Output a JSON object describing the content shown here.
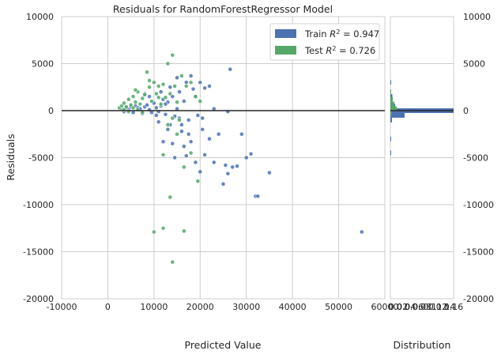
{
  "chart_data": {
    "type": "scatter",
    "title": "Residuals for RandomForestRegressor Model",
    "xlabel": "Predicted Value",
    "ylabel": "Residuals",
    "xlim": [
      -10000,
      60000
    ],
    "ylim": [
      -20000,
      10000
    ],
    "xticks": [
      "-10000",
      "0",
      "10000",
      "20000",
      "30000",
      "40000",
      "50000",
      "60000"
    ],
    "yticks": [
      "10000",
      "5000",
      "0",
      "-5000",
      "-10000",
      "-15000",
      "-20000"
    ],
    "grid": true,
    "zero_line": 0,
    "legend": {
      "placement": "top-right",
      "entries": [
        {
          "label": "Train R² = 0.947",
          "color": "#4c72b0"
        },
        {
          "label": "Test R² = 0.726",
          "color": "#55a868"
        }
      ]
    },
    "series": [
      {
        "name": "Train R² = 0.947",
        "color": "#4c72b0",
        "points": [
          [
            3000,
            200
          ],
          [
            3500,
            -100
          ],
          [
            4000,
            300
          ],
          [
            4500,
            100
          ],
          [
            5000,
            400
          ],
          [
            5500,
            -200
          ],
          [
            6000,
            500
          ],
          [
            6500,
            300
          ],
          [
            7000,
            200
          ],
          [
            7500,
            -300
          ],
          [
            8000,
            400
          ],
          [
            8500,
            600
          ],
          [
            9000,
            100
          ],
          [
            9500,
            -200
          ],
          [
            10000,
            800
          ],
          [
            10500,
            300
          ],
          [
            11000,
            -100
          ],
          [
            11500,
            500
          ],
          [
            12000,
            1200
          ],
          [
            12500,
            -400
          ],
          [
            13000,
            900
          ],
          [
            13500,
            2500
          ],
          [
            14000,
            1500
          ],
          [
            14500,
            -600
          ],
          [
            15000,
            3500
          ],
          [
            15500,
            2000
          ],
          [
            16000,
            -1500
          ],
          [
            16500,
            1000
          ],
          [
            17000,
            3000
          ],
          [
            17500,
            -2500
          ],
          [
            18000,
            3700
          ],
          [
            18500,
            2300
          ],
          [
            19000,
            1500
          ],
          [
            19500,
            -500
          ],
          [
            20000,
            3000
          ],
          [
            20500,
            -2000
          ],
          [
            21000,
            2400
          ],
          [
            22000,
            2600
          ],
          [
            11000,
            -1200
          ],
          [
            12000,
            -3300
          ],
          [
            12500,
            700
          ],
          [
            13000,
            -2000
          ],
          [
            13500,
            -1500
          ],
          [
            14000,
            -3500
          ],
          [
            14500,
            -5000
          ],
          [
            15000,
            200
          ],
          [
            15500,
            -800
          ],
          [
            16000,
            -2200
          ],
          [
            16500,
            -3800
          ],
          [
            17000,
            -4800
          ],
          [
            17500,
            -1000
          ],
          [
            18000,
            -3300
          ],
          [
            19000,
            -5500
          ],
          [
            20000,
            -6500
          ],
          [
            20500,
            -800
          ],
          [
            21000,
            -4700
          ],
          [
            22000,
            -3000
          ],
          [
            23000,
            -5500
          ],
          [
            24000,
            -2500
          ],
          [
            25000,
            -7800
          ],
          [
            25500,
            -5800
          ],
          [
            26000,
            -6700
          ],
          [
            26500,
            4400
          ],
          [
            27000,
            -6000
          ],
          [
            28000,
            -5900
          ],
          [
            29000,
            -2500
          ],
          [
            30000,
            -5000
          ],
          [
            31000,
            -4600
          ],
          [
            32000,
            -9100
          ],
          [
            32500,
            -9100
          ],
          [
            35000,
            -6600
          ],
          [
            55000,
            -12900
          ],
          [
            26000,
            -100
          ],
          [
            23000,
            200
          ],
          [
            9000,
            1500
          ],
          [
            8000,
            1800
          ],
          [
            10500,
            -500
          ],
          [
            11500,
            2000
          ]
        ]
      },
      {
        "name": "Test R² = 0.726",
        "color": "#55a868",
        "points": [
          [
            2500,
            300
          ],
          [
            3000,
            500
          ],
          [
            3500,
            800
          ],
          [
            4000,
            400
          ],
          [
            4500,
            1200
          ],
          [
            5000,
            600
          ],
          [
            5500,
            1500
          ],
          [
            6000,
            900
          ],
          [
            6500,
            2000
          ],
          [
            7000,
            700
          ],
          [
            7500,
            1300
          ],
          [
            8000,
            1700
          ],
          [
            8500,
            4100
          ],
          [
            9000,
            2500
          ],
          [
            9500,
            1000
          ],
          [
            10000,
            3000
          ],
          [
            10500,
            1800
          ],
          [
            11000,
            2600
          ],
          [
            11500,
            700
          ],
          [
            12000,
            2800
          ],
          [
            12500,
            1400
          ],
          [
            13000,
            5000
          ],
          [
            13500,
            1800
          ],
          [
            14000,
            5900
          ],
          [
            14500,
            2600
          ],
          [
            15000,
            900
          ],
          [
            15500,
            -1000
          ],
          [
            16000,
            3700
          ],
          [
            17000,
            2600
          ],
          [
            18000,
            3000
          ],
          [
            19000,
            1500
          ],
          [
            20000,
            1000
          ],
          [
            3500,
            100
          ],
          [
            4500,
            -100
          ],
          [
            5500,
            300
          ],
          [
            6500,
            100
          ],
          [
            7500,
            -200
          ],
          [
            12000,
            -4700
          ],
          [
            13000,
            -1500
          ],
          [
            14000,
            -800
          ],
          [
            15000,
            -2500
          ],
          [
            16500,
            -6000
          ],
          [
            18000,
            -4500
          ],
          [
            19500,
            -7500
          ],
          [
            13500,
            -9200
          ],
          [
            10000,
            -12900
          ],
          [
            12000,
            -12500
          ],
          [
            14000,
            -16100
          ],
          [
            16500,
            -12800
          ],
          [
            6000,
            2200
          ],
          [
            9000,
            3200
          ],
          [
            11000,
            1400
          ]
        ]
      }
    ],
    "distribution": {
      "xlabel": "Distribution",
      "xticks": [
        "0",
        "0.02",
        "0.04",
        "0.06",
        "0.08",
        "0.1",
        "0.12",
        "0.14",
        "0.16"
      ],
      "xlim": [
        0,
        0.16
      ],
      "train_bins": [
        {
          "center": 3000,
          "density": 0.002
        },
        {
          "center": 1500,
          "density": 0.005
        },
        {
          "center": 500,
          "density": 0.012
        },
        {
          "center": 0,
          "density": 0.16
        },
        {
          "center": -500,
          "density": 0.036
        },
        {
          "center": -1000,
          "density": 0.004
        },
        {
          "center": -3000,
          "density": 0.002
        },
        {
          "center": -4500,
          "density": 0.001
        }
      ],
      "test_bins": [
        {
          "center": 2000,
          "density": 0.002
        },
        {
          "center": 1200,
          "density": 0.006
        },
        {
          "center": 700,
          "density": 0.01
        },
        {
          "center": 200,
          "density": 0.016
        },
        {
          "center": -300,
          "density": 0.003
        }
      ]
    }
  }
}
